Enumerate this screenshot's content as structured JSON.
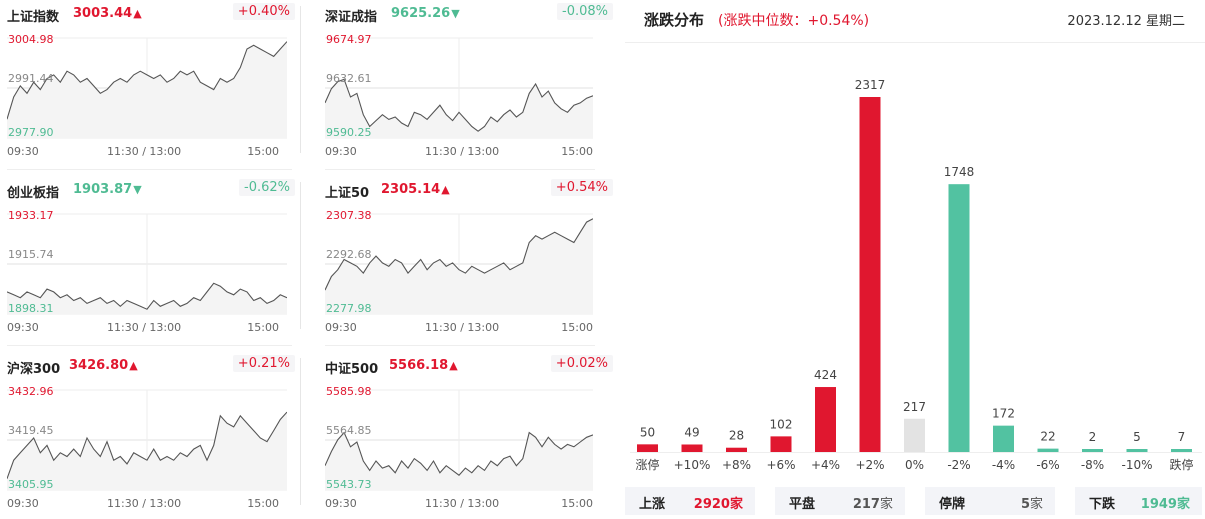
{
  "indices": [
    {
      "name": "上证指数",
      "price": "3003.44",
      "dir": "up",
      "arrow": "▲",
      "change": "+0.40%",
      "high": "3004.98",
      "mid": "2991.44",
      "low": "2977.90",
      "series": [
        2983,
        2989,
        2992,
        2990,
        2993,
        2991,
        2994,
        2995,
        2993,
        2996,
        2995,
        2993,
        2994,
        2992,
        2990,
        2991,
        2993,
        2994,
        2993,
        2995,
        2996,
        2995,
        2994,
        2995,
        2993,
        2994,
        2996,
        2995,
        2996,
        2993,
        2992,
        2991,
        2994,
        2993,
        2994,
        2997,
        3002,
        3003,
        3002,
        3001,
        3000,
        3002,
        3004
      ]
    },
    {
      "name": "深证成指",
      "price": "9625.26",
      "dir": "down",
      "arrow": "▼",
      "change": "-0.08%",
      "high": "9674.97",
      "mid": "9632.61",
      "low": "9590.25",
      "series": [
        9620,
        9632,
        9638,
        9640,
        9625,
        9628,
        9610,
        9600,
        9605,
        9610,
        9606,
        9608,
        9603,
        9600,
        9612,
        9610,
        9606,
        9612,
        9618,
        9610,
        9605,
        9612,
        9606,
        9600,
        9596,
        9600,
        9608,
        9604,
        9610,
        9614,
        9608,
        9612,
        9628,
        9636,
        9625,
        9630,
        9620,
        9615,
        9612,
        9618,
        9620,
        9624,
        9626
      ]
    },
    {
      "name": "创业板指",
      "price": "1903.87",
      "dir": "down",
      "arrow": "▼",
      "change": "-0.62%",
      "high": "1933.17",
      "mid": "1915.74",
      "low": "1898.31",
      "series": [
        1906,
        1905,
        1904,
        1906,
        1905,
        1904,
        1907,
        1906,
        1904,
        1905,
        1903,
        1904,
        1902,
        1903,
        1904,
        1902,
        1903,
        1901,
        1903,
        1902,
        1901,
        1900,
        1903,
        1901,
        1902,
        1903,
        1901,
        1902,
        1904,
        1903,
        1906,
        1909,
        1908,
        1906,
        1905,
        1907,
        1906,
        1903,
        1904,
        1902,
        1903,
        1905,
        1904
      ]
    },
    {
      "name": "上证50",
      "price": "2305.14",
      "dir": "up",
      "arrow": "▲",
      "change": "+0.54%",
      "high": "2307.38",
      "mid": "2292.68",
      "low": "2277.98",
      "series": [
        2285,
        2289,
        2291,
        2294,
        2293,
        2292,
        2290,
        2293,
        2295,
        2293,
        2292,
        2294,
        2293,
        2290,
        2292,
        2294,
        2291,
        2293,
        2294,
        2292,
        2293,
        2291,
        2290,
        2292,
        2291,
        2290,
        2291,
        2292,
        2293,
        2291,
        2292,
        2293,
        2299,
        2301,
        2300,
        2301,
        2302,
        2301,
        2300,
        2299,
        2302,
        2305,
        2306
      ]
    },
    {
      "name": "沪深300",
      "price": "3426.80",
      "dir": "up",
      "arrow": "▲",
      "change": "+0.21%",
      "high": "3432.96",
      "mid": "3419.45",
      "low": "3405.95",
      "series": [
        3409,
        3414,
        3416,
        3418,
        3420,
        3416,
        3418,
        3414,
        3416,
        3415,
        3417,
        3415,
        3420,
        3417,
        3415,
        3419,
        3414,
        3415,
        3413,
        3416,
        3415,
        3414,
        3417,
        3414,
        3415,
        3414,
        3416,
        3415,
        3417,
        3418,
        3414,
        3418,
        3426,
        3424,
        3423,
        3426,
        3424,
        3422,
        3420,
        3419,
        3422,
        3425,
        3427
      ]
    },
    {
      "name": "中证500",
      "price": "5566.18",
      "dir": "up",
      "arrow": "▲",
      "change": "+0.02%",
      "high": "5585.98",
      "mid": "5564.85",
      "low": "5543.73",
      "series": [
        5554,
        5560,
        5565,
        5568,
        5562,
        5564,
        5556,
        5552,
        5556,
        5553,
        5554,
        5551,
        5556,
        5553,
        5557,
        5555,
        5552,
        5556,
        5551,
        5554,
        5552,
        5550,
        5553,
        5551,
        5554,
        5552,
        5556,
        5554,
        5557,
        5558,
        5554,
        5557,
        5568,
        5566,
        5562,
        5566,
        5563,
        5561,
        5563,
        5562,
        5564,
        5566,
        5567
      ]
    }
  ],
  "time_labels": [
    "09:30",
    "11:30 / 13:00",
    "15:00"
  ],
  "distribution": {
    "title": "涨跌分布",
    "subtitle": "(涨跌中位数：+0.54%)",
    "date": "2023.12.12 星期二",
    "chart_data": {
      "type": "bar",
      "categories": [
        "涨停",
        "+10%",
        "+8%",
        "+6%",
        "+4%",
        "+2%",
        "0%",
        "-2%",
        "-4%",
        "-6%",
        "-8%",
        "-10%",
        "跌停"
      ],
      "values": [
        50,
        49,
        28,
        102,
        424,
        2317,
        217,
        1748,
        172,
        22,
        2,
        5,
        7
      ],
      "colors": [
        "#e0172f",
        "#e0172f",
        "#e0172f",
        "#e0172f",
        "#e0172f",
        "#e0172f",
        "#e3e3e3",
        "#52c2a1",
        "#52c2a1",
        "#52c2a1",
        "#52c2a1",
        "#52c2a1",
        "#52c2a1"
      ]
    },
    "summary": [
      {
        "label": "上涨",
        "value": "2920",
        "unit": "家",
        "tone": "red"
      },
      {
        "label": "平盘",
        "value": "217",
        "unit": "家",
        "tone": "plain"
      },
      {
        "label": "停牌",
        "value": "5",
        "unit": "家",
        "tone": "plain"
      },
      {
        "label": "下跌",
        "value": "1949",
        "unit": "家",
        "tone": "green"
      }
    ]
  },
  "colors": {
    "up": "#e0172f",
    "down": "#4fbb93",
    "flat": "#e3e3e3"
  }
}
